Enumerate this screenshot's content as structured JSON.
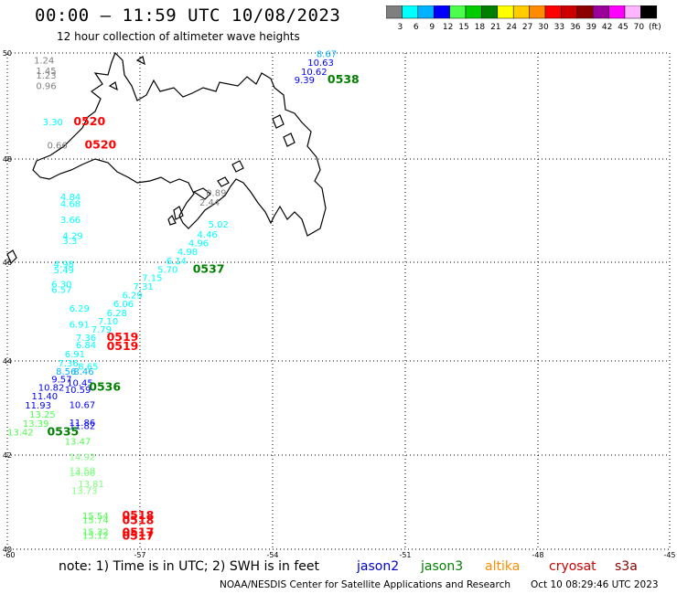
{
  "header": {
    "title": "00:00 — 11:59 UTC 10/08/2023",
    "subtitle": "12 hour collection of altimeter wave heights"
  },
  "colorbar": {
    "colors": [
      "#7f7f7f",
      "#00ffff",
      "#00b2ff",
      "#0000ff",
      "#4cff4c",
      "#00cc00",
      "#008000",
      "#ffff00",
      "#ffcc00",
      "#ff8c00",
      "#ff0000",
      "#cc0000",
      "#8b0000",
      "#9b009b",
      "#ff00ff",
      "#ffb6ff",
      "#000000"
    ],
    "labels": [
      "3",
      "6",
      "9",
      "12",
      "15",
      "18",
      "21",
      "24",
      "27",
      "30",
      "33",
      "36",
      "39",
      "42",
      "45",
      "70",
      "(ft)"
    ]
  },
  "axes": {
    "lat_labels": [
      "50",
      "48",
      "46",
      "44",
      "42",
      "40"
    ],
    "lon_labels": [
      "-60",
      "-57",
      "-54",
      "-51",
      "-48",
      "-45"
    ]
  },
  "map_data": {
    "labels": [
      {
        "text": "8.67",
        "lon": -53.0,
        "lat": 49.92,
        "color": "#00b2ff"
      },
      {
        "text": "10.63",
        "lon": -53.2,
        "lat": 49.76,
        "color": "#0000ff"
      },
      {
        "text": "10.62",
        "lon": -53.35,
        "lat": 49.59,
        "color": "#0000ff"
      },
      {
        "text": "9.39",
        "lon": -53.5,
        "lat": 49.43,
        "color": "#0000ff"
      },
      {
        "text": "0538",
        "lon": -52.75,
        "lat": 49.43,
        "color": "#008000",
        "bold": true
      },
      {
        "text": "1.24",
        "lon": -59.4,
        "lat": 49.8,
        "color": "#7f7f7f"
      },
      {
        "text": "1.45",
        "lon": -59.35,
        "lat": 49.6,
        "color": "#7f7f7f"
      },
      {
        "text": "1.23",
        "lon": -59.35,
        "lat": 49.52,
        "color": "#7f7f7f"
      },
      {
        "text": "0.96",
        "lon": -59.35,
        "lat": 49.32,
        "color": "#7f7f7f"
      },
      {
        "text": "3.30",
        "lon": -59.2,
        "lat": 48.64,
        "color": "#00ffff"
      },
      {
        "text": "0520",
        "lon": -58.5,
        "lat": 48.64,
        "color": "#ff0000",
        "bold": true
      },
      {
        "text": "0.66",
        "lon": -59.1,
        "lat": 48.2,
        "color": "#7f7f7f"
      },
      {
        "text": "0520",
        "lon": -58.25,
        "lat": 48.2,
        "color": "#ff0000",
        "bold": true
      },
      {
        "text": "0.89",
        "lon": -55.5,
        "lat": 47.28,
        "color": "#7f7f7f"
      },
      {
        "text": "2.44",
        "lon": -55.65,
        "lat": 47.1,
        "color": "#7f7f7f"
      },
      {
        "text": "4.84",
        "lon": -58.8,
        "lat": 47.2,
        "color": "#00ffff"
      },
      {
        "text": "4.68",
        "lon": -58.8,
        "lat": 47.07,
        "color": "#00ffff"
      },
      {
        "text": "3.66",
        "lon": -58.8,
        "lat": 46.76,
        "color": "#00ffff"
      },
      {
        "text": "4.29",
        "lon": -58.75,
        "lat": 46.45,
        "color": "#00ffff"
      },
      {
        "text": "3.3",
        "lon": -58.75,
        "lat": 46.35,
        "color": "#00ffff"
      },
      {
        "text": "5.02",
        "lon": -55.45,
        "lat": 46.67,
        "color": "#00ffff"
      },
      {
        "text": "4.46",
        "lon": -55.7,
        "lat": 46.48,
        "color": "#00ffff"
      },
      {
        "text": "4.96",
        "lon": -55.9,
        "lat": 46.31,
        "color": "#00ffff"
      },
      {
        "text": "4.98",
        "lon": -56.15,
        "lat": 46.14,
        "color": "#00ffff"
      },
      {
        "text": "6.14",
        "lon": -56.4,
        "lat": 45.96,
        "color": "#00ffff"
      },
      {
        "text": "5.70",
        "lon": -56.6,
        "lat": 45.79,
        "color": "#00ffff"
      },
      {
        "text": "0537",
        "lon": -55.8,
        "lat": 45.79,
        "color": "#008000",
        "bold": true
      },
      {
        "text": "4.98",
        "lon": -58.95,
        "lat": 45.9,
        "color": "#00ffff"
      },
      {
        "text": "5.49",
        "lon": -58.95,
        "lat": 45.78,
        "color": "#00ffff"
      },
      {
        "text": "7.15",
        "lon": -56.95,
        "lat": 45.62,
        "color": "#00ffff"
      },
      {
        "text": "6.30",
        "lon": -59.0,
        "lat": 45.49,
        "color": "#00ffff"
      },
      {
        "text": "7.31",
        "lon": -57.15,
        "lat": 45.44,
        "color": "#00ffff"
      },
      {
        "text": "6.57",
        "lon": -59.0,
        "lat": 45.38,
        "color": "#00ffff"
      },
      {
        "text": "6.29",
        "lon": -57.4,
        "lat": 45.27,
        "color": "#00ffff"
      },
      {
        "text": "6.06",
        "lon": -57.6,
        "lat": 45.09,
        "color": "#00ffff"
      },
      {
        "text": "6.29",
        "lon": -58.6,
        "lat": 45.0,
        "color": "#00ffff"
      },
      {
        "text": "6.28",
        "lon": -57.75,
        "lat": 44.91,
        "color": "#00ffff"
      },
      {
        "text": "7.10",
        "lon": -57.95,
        "lat": 44.74,
        "color": "#00ffff"
      },
      {
        "text": "6.91",
        "lon": -58.6,
        "lat": 44.68,
        "color": "#00ffff"
      },
      {
        "text": "7.79",
        "lon": -58.1,
        "lat": 44.57,
        "color": "#00ffff"
      },
      {
        "text": "7.36",
        "lon": -58.45,
        "lat": 44.41,
        "color": "#00ffff"
      },
      {
        "text": "0519",
        "lon": -57.75,
        "lat": 44.41,
        "color": "#ff0000",
        "bold": true
      },
      {
        "text": "6.84",
        "lon": -58.45,
        "lat": 44.26,
        "color": "#00ffff"
      },
      {
        "text": "0519",
        "lon": -57.75,
        "lat": 44.22,
        "color": "#ff0000",
        "bold": true
      },
      {
        "text": "6.91",
        "lon": -58.7,
        "lat": 44.07,
        "color": "#00ffff"
      },
      {
        "text": "7.36",
        "lon": -58.85,
        "lat": 43.88,
        "color": "#00ffff"
      },
      {
        "text": "8.65",
        "lon": -58.4,
        "lat": 43.82,
        "color": "#00ffff"
      },
      {
        "text": "8.56",
        "lon": -58.9,
        "lat": 43.71,
        "color": "#00b2ff"
      },
      {
        "text": "8.46",
        "lon": -58.5,
        "lat": 43.71,
        "color": "#00b2ff"
      },
      {
        "text": "9.57",
        "lon": -59.0,
        "lat": 43.54,
        "color": "#0000ff"
      },
      {
        "text": "10.45",
        "lon": -58.65,
        "lat": 43.47,
        "color": "#0000ff"
      },
      {
        "text": "0536",
        "lon": -58.15,
        "lat": 43.37,
        "color": "#008000",
        "bold": true
      },
      {
        "text": "10.82",
        "lon": -59.3,
        "lat": 43.37,
        "color": "#0000ff"
      },
      {
        "text": "10.59",
        "lon": -58.7,
        "lat": 43.32,
        "color": "#0000ff"
      },
      {
        "text": "11.40",
        "lon": -59.45,
        "lat": 43.18,
        "color": "#0000ff"
      },
      {
        "text": "10.67",
        "lon": -58.6,
        "lat": 43.0,
        "color": "#0000ff"
      },
      {
        "text": "11.93",
        "lon": -59.6,
        "lat": 42.99,
        "color": "#0000ff"
      },
      {
        "text": "13.25",
        "lon": -59.5,
        "lat": 42.8,
        "color": "#4cff4c"
      },
      {
        "text": "11.86",
        "lon": -58.6,
        "lat": 42.62,
        "color": "#0000ff"
      },
      {
        "text": "13.39",
        "lon": -59.65,
        "lat": 42.6,
        "color": "#4cff4c"
      },
      {
        "text": "11.82",
        "lon": -58.6,
        "lat": 42.55,
        "color": "#0000ff"
      },
      {
        "text": "13.42",
        "lon": -60.0,
        "lat": 42.42,
        "color": "#4cff4c"
      },
      {
        "text": "0535",
        "lon": -59.1,
        "lat": 42.42,
        "color": "#008000",
        "bold": true
      },
      {
        "text": "13.47",
        "lon": -58.7,
        "lat": 42.22,
        "color": "#4cff4c"
      },
      {
        "text": "14.92",
        "lon": -58.6,
        "lat": 41.89,
        "color": "#7fff7f"
      },
      {
        "text": "13.58",
        "lon": -58.6,
        "lat": 41.6,
        "color": "#7fff7f"
      },
      {
        "text": "14.06",
        "lon": -58.6,
        "lat": 41.55,
        "color": "#7fff7f"
      },
      {
        "text": "13.81",
        "lon": -58.4,
        "lat": 41.32,
        "color": "#7fff7f"
      },
      {
        "text": "13.73",
        "lon": -58.55,
        "lat": 41.17,
        "color": "#7fff7f"
      },
      {
        "text": "15.54",
        "lon": -58.3,
        "lat": 40.64,
        "color": "#4cff4c"
      },
      {
        "text": "0518",
        "lon": -57.4,
        "lat": 40.64,
        "color": "#ff0000",
        "bold": true
      },
      {
        "text": "15.74",
        "lon": -58.3,
        "lat": 40.55,
        "color": "#4cff4c"
      },
      {
        "text": "0518",
        "lon": -57.4,
        "lat": 40.53,
        "color": "#ff0000",
        "bold": true
      },
      {
        "text": "15.32",
        "lon": -58.3,
        "lat": 40.3,
        "color": "#4cff4c"
      },
      {
        "text": "0517",
        "lon": -57.4,
        "lat": 40.28,
        "color": "#ff0000",
        "bold": true
      },
      {
        "text": "15.12",
        "lon": -58.3,
        "lat": 40.22,
        "color": "#4cff4c"
      },
      {
        "text": "0517",
        "lon": -57.4,
        "lat": 40.2,
        "color": "#ff0000",
        "bold": true
      }
    ]
  },
  "note": {
    "text": "note: 1) Time is in UTC; 2) SWH is in feet",
    "satellites": [
      {
        "name": "jason2",
        "color": "#0000cc"
      },
      {
        "name": "jason3",
        "color": "#008000"
      },
      {
        "name": "altika",
        "color": "#ff8c00"
      },
      {
        "name": "cryosat",
        "color": "#cc0000"
      },
      {
        "name": "s3a",
        "color": "#8b0000"
      }
    ]
  },
  "footer": {
    "credit": "NOAA/NESDIS Center for Satellite Applications and Research",
    "timestamp": "Oct 10 08:29:46 UTC 2023"
  }
}
